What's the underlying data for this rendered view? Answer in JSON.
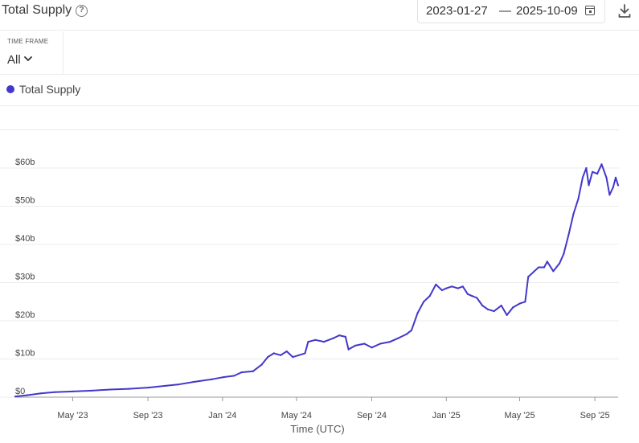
{
  "header": {
    "title": "Total Supply",
    "date_start": "2023-01-27",
    "date_separator": "—",
    "date_end": "2025-10-09"
  },
  "icons": {
    "help": "help-circle-icon",
    "calendar": "calendar-icon",
    "download": "download-icon",
    "chevron": "chevron-down-icon"
  },
  "timeframe": {
    "label": "TIME FRAME",
    "value": "All"
  },
  "colors": {
    "series": "#4338ca"
  },
  "chart_data": {
    "type": "line",
    "xlabel": "Time (UTC)",
    "ylabel": "",
    "ylim": [
      0,
      70
    ],
    "y_ticks": [
      0,
      10,
      20,
      30,
      40,
      50,
      60
    ],
    "y_tick_labels": [
      "$0",
      "$10b",
      "$20b",
      "$30b",
      "$40b",
      "$50b",
      "$60b"
    ],
    "x_ticks": [
      "2023-05-01",
      "2023-09-01",
      "2024-01-01",
      "2024-05-01",
      "2024-09-01",
      "2025-01-01",
      "2025-05-01",
      "2025-09-01"
    ],
    "x_tick_labels": [
      "May '23",
      "Sep '23",
      "Jan '24",
      "May '24",
      "Sep '24",
      "Jan '25",
      "May '25",
      "Sep '25"
    ],
    "x_range": [
      "2023-01-27",
      "2025-10-09"
    ],
    "grid": true,
    "legend": "top-left",
    "series": [
      {
        "name": "Total Supply",
        "unit": "billion USD",
        "points": [
          [
            "2023-01-27",
            0.2
          ],
          [
            "2023-02-15",
            0.5
          ],
          [
            "2023-03-10",
            1.0
          ],
          [
            "2023-04-01",
            1.3
          ],
          [
            "2023-05-01",
            1.5
          ],
          [
            "2023-06-01",
            1.7
          ],
          [
            "2023-07-01",
            2.0
          ],
          [
            "2023-08-01",
            2.2
          ],
          [
            "2023-09-01",
            2.5
          ],
          [
            "2023-10-01",
            3.0
          ],
          [
            "2023-10-20",
            3.3
          ],
          [
            "2023-11-15",
            4.0
          ],
          [
            "2023-12-15",
            4.7
          ],
          [
            "2024-01-01",
            5.2
          ],
          [
            "2024-01-20",
            5.6
          ],
          [
            "2024-02-01",
            6.5
          ],
          [
            "2024-02-20",
            6.8
          ],
          [
            "2024-03-05",
            8.5
          ],
          [
            "2024-03-15",
            10.5
          ],
          [
            "2024-03-25",
            11.5
          ],
          [
            "2024-04-05",
            11.0
          ],
          [
            "2024-04-15",
            12.0
          ],
          [
            "2024-04-25",
            10.5
          ],
          [
            "2024-05-05",
            11.0
          ],
          [
            "2024-05-15",
            11.5
          ],
          [
            "2024-05-20",
            14.5
          ],
          [
            "2024-06-01",
            15.0
          ],
          [
            "2024-06-15",
            14.5
          ],
          [
            "2024-07-01",
            15.5
          ],
          [
            "2024-07-10",
            16.2
          ],
          [
            "2024-07-20",
            15.8
          ],
          [
            "2024-07-25",
            12.5
          ],
          [
            "2024-08-05",
            13.5
          ],
          [
            "2024-08-20",
            14.0
          ],
          [
            "2024-09-01",
            13.0
          ],
          [
            "2024-09-15",
            14.0
          ],
          [
            "2024-10-01",
            14.5
          ],
          [
            "2024-10-15",
            15.5
          ],
          [
            "2024-10-28",
            16.5
          ],
          [
            "2024-11-05",
            17.5
          ],
          [
            "2024-11-15",
            22.0
          ],
          [
            "2024-11-25",
            25.0
          ],
          [
            "2024-12-05",
            26.5
          ],
          [
            "2024-12-15",
            29.5
          ],
          [
            "2024-12-25",
            28.0
          ],
          [
            "2025-01-01",
            28.5
          ],
          [
            "2025-01-10",
            29.0
          ],
          [
            "2025-01-20",
            28.5
          ],
          [
            "2025-01-28",
            29.0
          ],
          [
            "2025-02-05",
            27.0
          ],
          [
            "2025-02-12",
            26.5
          ],
          [
            "2025-02-20",
            26.0
          ],
          [
            "2025-03-01",
            24.0
          ],
          [
            "2025-03-10",
            23.0
          ],
          [
            "2025-03-20",
            22.5
          ],
          [
            "2025-04-01",
            24.0
          ],
          [
            "2025-04-10",
            21.5
          ],
          [
            "2025-04-20",
            23.5
          ],
          [
            "2025-05-01",
            24.5
          ],
          [
            "2025-05-10",
            25.0
          ],
          [
            "2025-05-15",
            31.5
          ],
          [
            "2025-05-25",
            33.0
          ],
          [
            "2025-06-01",
            34.0
          ],
          [
            "2025-06-10",
            34.0
          ],
          [
            "2025-06-15",
            35.5
          ],
          [
            "2025-06-25",
            33.0
          ],
          [
            "2025-07-05",
            35.0
          ],
          [
            "2025-07-12",
            37.5
          ],
          [
            "2025-07-20",
            42.5
          ],
          [
            "2025-07-28",
            48.0
          ],
          [
            "2025-08-05",
            52.0
          ],
          [
            "2025-08-12",
            57.5
          ],
          [
            "2025-08-18",
            60.0
          ],
          [
            "2025-08-22",
            55.5
          ],
          [
            "2025-08-28",
            59.0
          ],
          [
            "2025-09-05",
            58.5
          ],
          [
            "2025-09-12",
            61.0
          ],
          [
            "2025-09-20",
            57.5
          ],
          [
            "2025-09-25",
            53.0
          ],
          [
            "2025-10-01",
            55.0
          ],
          [
            "2025-10-05",
            57.5
          ],
          [
            "2025-10-09",
            55.5
          ]
        ]
      }
    ]
  }
}
